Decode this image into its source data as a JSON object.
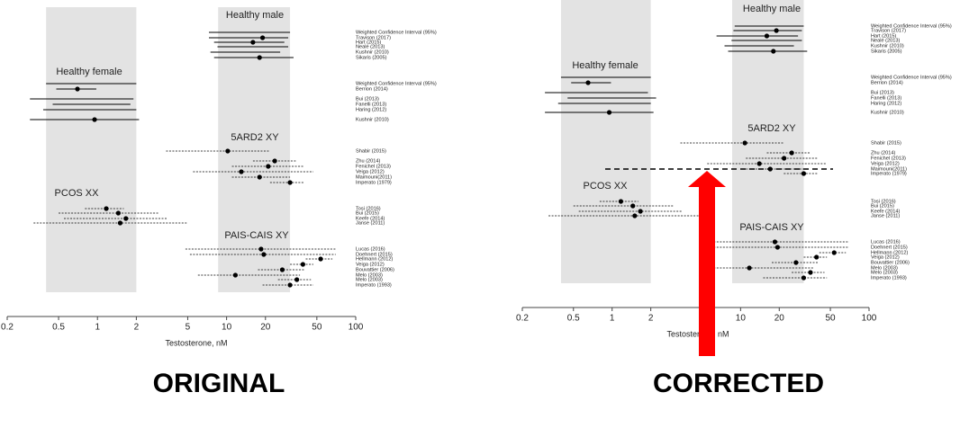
{
  "chart_data": [
    {
      "type": "forest",
      "caption": "ORIGINAL",
      "x_label": "Testosterone, nM",
      "log_x": true,
      "xlim": [
        0.2,
        100
      ],
      "xticks": [
        0.2,
        0.5,
        1,
        2,
        5,
        10,
        20,
        50,
        100
      ],
      "shaded_ranges": [
        [
          0.4,
          2
        ],
        [
          8.6,
          31
        ]
      ],
      "shade_color": "#e3e3e3",
      "color": "#000000",
      "groups": [
        {
          "name": "Healthy male",
          "line": "solid",
          "studies": [
            {
              "name": "Weighted Confidence Interval (95%)",
              "value": null,
              "low": 7.3,
              "high": 31
            },
            {
              "name": "Travison (2017)",
              "value": 19,
              "low": 7.3,
              "high": 30
            },
            {
              "name": "Hart (2015)",
              "value": 16,
              "low": 8,
              "high": 28
            },
            {
              "name": "Neale (2013)",
              "value": null,
              "low": 8.5,
              "high": 30
            },
            {
              "name": "Kushnir (2010)",
              "value": null,
              "low": 7.5,
              "high": 26
            },
            {
              "name": "Sikaris (2005)",
              "value": 18,
              "low": 8,
              "high": 33
            }
          ]
        },
        {
          "name": "Healthy female",
          "line": "solid",
          "studies": [
            {
              "name": "Weighted Confidence Interval (95%)",
              "value": null,
              "low": 0.4,
              "high": 2
            },
            {
              "name": "Berrion (2014)",
              "value": 0.7,
              "low": 0.48,
              "high": 0.98
            },
            {
              "name": "Bui (2013)",
              "value": null,
              "low": 0.3,
              "high": 1.9
            },
            {
              "name": "Fanelli (2013)",
              "value": null,
              "low": 0.45,
              "high": 1.8
            },
            {
              "name": "Haring (2012)",
              "value": null,
              "low": 0.38,
              "high": 2
            },
            {
              "name": "Kushnir (2010)",
              "value": 0.95,
              "low": 0.3,
              "high": 2.1
            }
          ]
        },
        {
          "name": "5ARD2 XY",
          "line": "dashed",
          "studies": [
            {
              "name": "Shabir (2015)",
              "value": 10.2,
              "low": 3.4,
              "high": 21.7
            },
            {
              "name": "Zhu (2014)",
              "value": 23.6,
              "low": 16,
              "high": 35
            },
            {
              "name": "Fenichel (2013)",
              "value": 21,
              "low": 11,
              "high": 40
            },
            {
              "name": "Veiga (2012)",
              "value": 13,
              "low": 5.5,
              "high": 47
            },
            {
              "name": "Maimouni(2011)",
              "value": 18,
              "low": 11,
              "high": 31
            },
            {
              "name": "Imperato (1979)",
              "value": 31,
              "low": 21.7,
              "high": 40
            }
          ]
        },
        {
          "name": "PCOS XX",
          "line": "dashed",
          "studies": [
            {
              "name": "Tosi (2016)",
              "value": 1.17,
              "low": 0.8,
              "high": 1.6
            },
            {
              "name": "Bui (2015)",
              "value": 1.45,
              "low": 0.5,
              "high": 3
            },
            {
              "name": "Keefe (2014)",
              "value": 1.66,
              "low": 0.55,
              "high": 3.5
            },
            {
              "name": "Janse (2011)",
              "value": 1.5,
              "low": 0.32,
              "high": 5
            }
          ]
        },
        {
          "name": "PAIS-CAIS XY",
          "line": "dashed",
          "studies": [
            {
              "name": "Lucas (2016)",
              "value": 18.5,
              "low": 4.8,
              "high": 70
            },
            {
              "name": "Doehnert (2015)",
              "value": 19.4,
              "low": 5.2,
              "high": 70
            },
            {
              "name": "Hellmann (2012)",
              "value": 53.5,
              "low": 41,
              "high": 66
            },
            {
              "name": "Veiga (2012)",
              "value": 39,
              "low": 31,
              "high": 47
            },
            {
              "name": "Bouvattier (2006)",
              "value": 27,
              "low": 17.5,
              "high": 40
            },
            {
              "name": "Melo (2003)",
              "value": 11.7,
              "low": 6,
              "high": 37
            },
            {
              "name": "Melo (2003)",
              "value": 35,
              "low": 25,
              "high": 45
            },
            {
              "name": "Imperato (1993)",
              "value": 31,
              "low": 19,
              "high": 47
            }
          ]
        }
      ]
    },
    {
      "type": "forest",
      "caption": "CORRECTED",
      "x_label": "Testosterone, nM",
      "log_x": true,
      "xlim": [
        0.2,
        100
      ],
      "xticks": [
        0.2,
        0.5,
        1,
        2,
        5,
        10,
        20,
        50,
        100
      ],
      "shaded_ranges": [
        [
          0.4,
          2
        ],
        [
          8.6,
          31
        ]
      ],
      "shade_color": "#e3e3e3",
      "color": "#000000",
      "groups": [
        {
          "name": "Healthy male",
          "line": "solid",
          "studies": [
            {
              "name": "Weighted Confidence Interval (95%)",
              "value": null,
              "low": 9,
              "high": 31
            },
            {
              "name": "Travison (2017)",
              "value": 19,
              "low": 8.8,
              "high": 30
            },
            {
              "name": "Hart (2015)",
              "value": 16,
              "low": 6.5,
              "high": 28
            },
            {
              "name": "Neale (2013)",
              "value": null,
              "low": 8.5,
              "high": 30
            },
            {
              "name": "Kushnir (2010)",
              "value": null,
              "low": 7.5,
              "high": 26
            },
            {
              "name": "Sikaris (2005)",
              "value": 18,
              "low": 8,
              "high": 33
            }
          ]
        },
        {
          "name": "Healthy female",
          "line": "solid",
          "studies": [
            {
              "name": "Weighted Confidence Interval (95%)",
              "value": null,
              "low": 0.4,
              "high": 2
            },
            {
              "name": "Berrion (2014)",
              "value": 0.65,
              "low": 0.48,
              "high": 0.98
            },
            {
              "name": "Bui (2013)",
              "value": null,
              "low": 0.3,
              "high": 1.9
            },
            {
              "name": "Fanelli (2013)",
              "value": null,
              "low": 0.45,
              "high": 2.2
            },
            {
              "name": "Haring (2012)",
              "value": null,
              "low": 0.38,
              "high": 2
            },
            {
              "name": "Kushnir (2010)",
              "value": 0.95,
              "low": 0.3,
              "high": 2.1
            }
          ]
        },
        {
          "name": "5ARD2 XY",
          "line": "dashed",
          "studies": [
            {
              "name": "Shabir (2015)",
              "value": 10.8,
              "low": 3.4,
              "high": 21.7
            },
            {
              "name": "Zhu (2014)",
              "value": 25,
              "low": 16,
              "high": 35
            },
            {
              "name": "Fenichel (2013)",
              "value": 21.8,
              "low": 11,
              "high": 40
            },
            {
              "name": "Veiga (2012)",
              "value": 14,
              "low": 5.5,
              "high": 47
            },
            {
              "name": "Maimouni(2011)",
              "value": 17,
              "low": 11,
              "high": 31
            },
            {
              "name": "Imperato (1979)",
              "value": 31,
              "low": 21.7,
              "high": 40
            }
          ]
        },
        {
          "name": "PCOS XX",
          "line": "dashed",
          "studies": [
            {
              "name": "Tosi (2016)",
              "value": 1.17,
              "low": 0.8,
              "high": 1.6
            },
            {
              "name": "Bui (2015)",
              "value": 1.45,
              "low": 0.5,
              "high": 3
            },
            {
              "name": "Keefe (2014)",
              "value": 1.66,
              "low": 0.55,
              "high": 3.5
            },
            {
              "name": "Janse (2011)",
              "value": 1.5,
              "low": 0.32,
              "high": 5
            }
          ]
        },
        {
          "name": "PAIS-CAIS XY",
          "line": "dashed",
          "studies": [
            {
              "name": "Lucas (2016)",
              "value": 18.5,
              "low": 5.2,
              "high": 70
            },
            {
              "name": "Doehnert (2015)",
              "value": 19.4,
              "low": 5.2,
              "high": 70
            },
            {
              "name": "Hellmann (2012)",
              "value": 53.5,
              "low": 41,
              "high": 66
            },
            {
              "name": "Veiga (2012)",
              "value": 39,
              "low": 31,
              "high": 47
            },
            {
              "name": "Bouvattier (2006)",
              "value": 27,
              "low": 17.5,
              "high": 40
            },
            {
              "name": "Melo (2003)",
              "value": 11.7,
              "low": 5.2,
              "high": 37
            },
            {
              "name": "Melo (2003)",
              "value": 35,
              "low": 25,
              "high": 45
            },
            {
              "name": "Imperato (1993)",
              "value": 31,
              "low": 15,
              "high": 47
            }
          ]
        }
      ]
    }
  ]
}
